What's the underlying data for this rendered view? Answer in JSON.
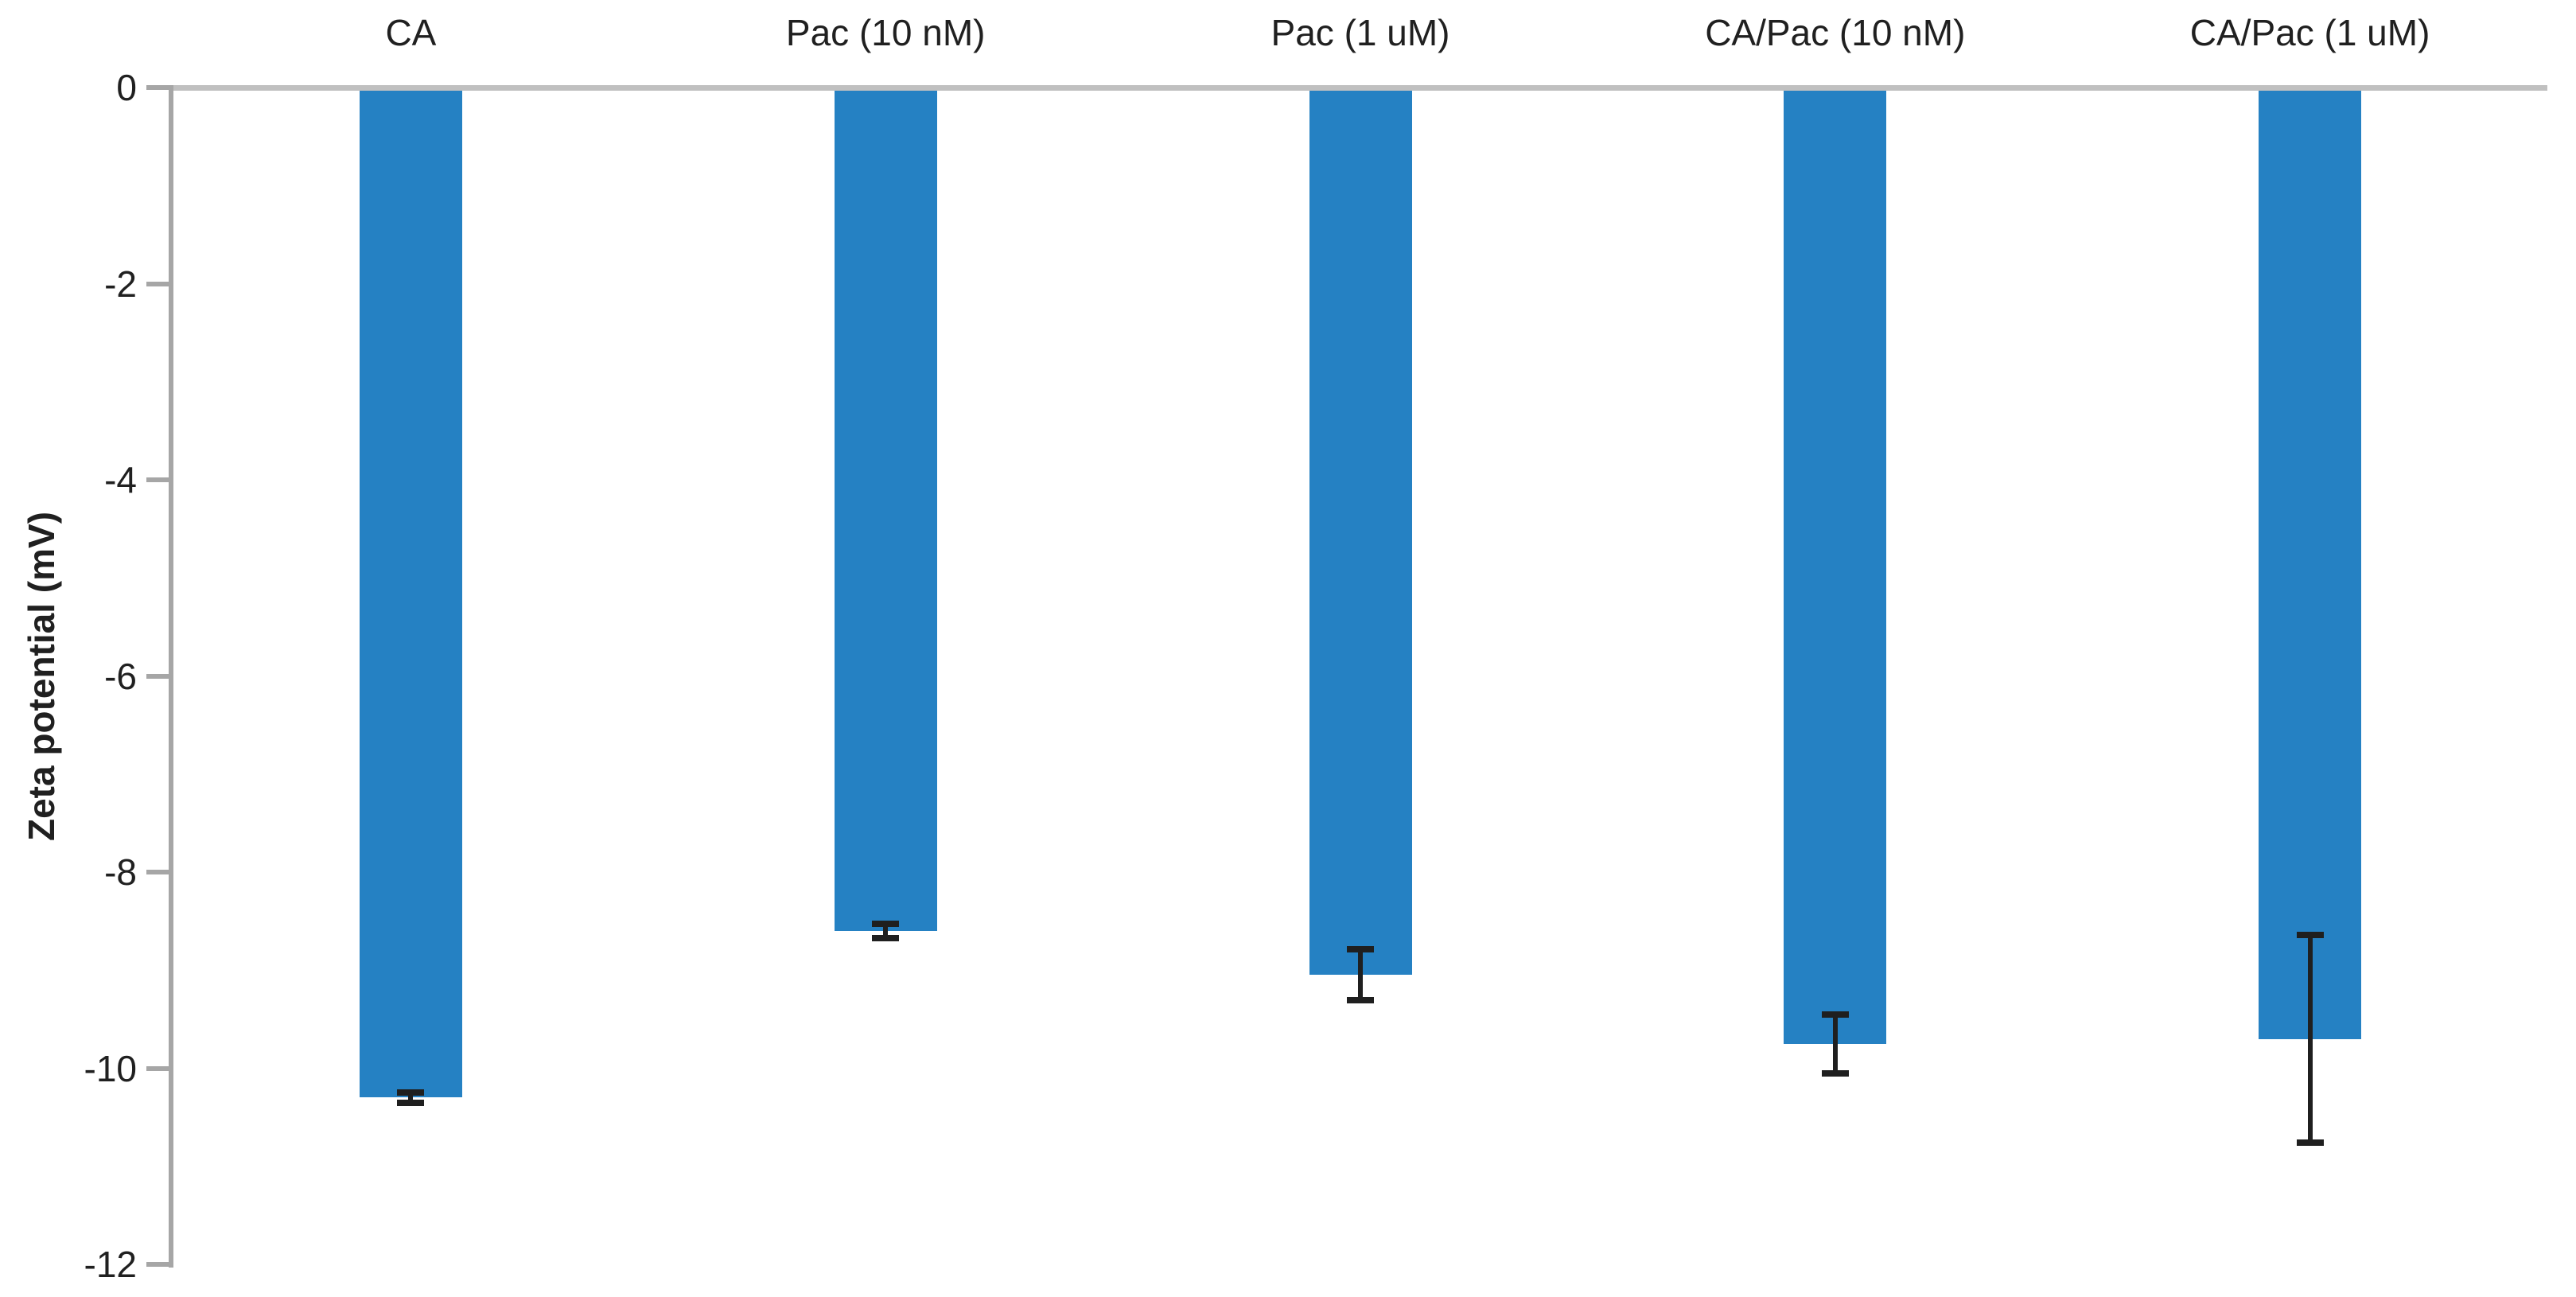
{
  "chart_data": {
    "type": "bar",
    "title": "",
    "xlabel": "",
    "ylabel": "Zeta potential (mV)",
    "categories": [
      "CA",
      "Pac (10 nM)",
      "Pac (1 uM)",
      "CA/Pac (10 nM)",
      "CA/Pac (1 uM)"
    ],
    "series": [
      {
        "name": "Zeta potential",
        "values": [
          -10.3,
          -8.6,
          -9.05,
          -9.75,
          -9.7
        ],
        "errors": [
          0.05,
          0.07,
          0.26,
          0.3,
          1.06
        ]
      }
    ],
    "ylim": [
      -12,
      0
    ],
    "yticks": [
      0,
      -2,
      -4,
      -6,
      -8,
      -10,
      -12
    ],
    "grid": false,
    "legend": "none",
    "category_labels_position": "top",
    "colors": {
      "bar": "#2581c3",
      "error_bar": "#1f1f1f",
      "axis": "#a6a6a6",
      "zero_line": "#c0c0c0",
      "text": "#202020"
    }
  }
}
